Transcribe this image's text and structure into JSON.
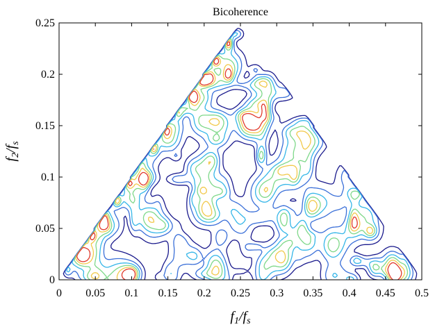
{
  "chart_data": {
    "type": "contour",
    "title": "Bicoherence",
    "xlabel": {
      "main": "f",
      "sub1": "1",
      "slash": "/",
      "main2": "f",
      "sub2": "s"
    },
    "ylabel": {
      "main": "f",
      "sub1": "2",
      "slash": "/",
      "main2": "f",
      "sub2": "s"
    },
    "xlim": [
      0,
      0.5
    ],
    "ylim": [
      0,
      0.25
    ],
    "xticks": [
      0,
      0.05,
      0.1,
      0.15,
      0.2,
      0.25,
      0.3,
      0.35,
      0.4,
      0.45,
      0.5
    ],
    "xtick_labels": [
      "0",
      "0.05",
      "0.1",
      "0.15",
      "0.2",
      "0.25",
      "0.3",
      "0.35",
      "0.4",
      "0.45",
      "0.5"
    ],
    "yticks": [
      0,
      0.05,
      0.1,
      0.15,
      0.2,
      0.25
    ],
    "ytick_labels": [
      "0",
      "0.05",
      "0.1",
      "0.15",
      "0.2",
      "0.25"
    ],
    "domain": "principal triangle with vertices (0,0), (0.25,0.25), (0.5,0)",
    "contour_levels": [
      {
        "level": 1,
        "color": "#1a1a8c"
      },
      {
        "level": 2,
        "color": "#3a6fd8"
      },
      {
        "level": 3,
        "color": "#35b6e8"
      },
      {
        "level": 4,
        "color": "#7fd88a"
      },
      {
        "level": 5,
        "color": "#f2c94c"
      },
      {
        "level": 6,
        "color": "#e0392b"
      }
    ],
    "peaks": [
      {
        "x": 0.08,
        "y": 0.0,
        "level": 6
      },
      {
        "x": 0.055,
        "y": 0.06,
        "level": 5
      },
      {
        "x": 0.32,
        "y": 0.105,
        "level": 5
      },
      {
        "x": 0.42,
        "y": 0.06,
        "level": 5
      },
      {
        "x": 0.15,
        "y": 0.14,
        "level": 4
      },
      {
        "x": 0.19,
        "y": 0.18,
        "level": 4
      },
      {
        "x": 0.27,
        "y": 0.155,
        "level": 4
      },
      {
        "x": 0.22,
        "y": 0.145,
        "level": 4
      },
      {
        "x": 0.36,
        "y": 0.075,
        "level": 4
      },
      {
        "x": 0.1,
        "y": 0.095,
        "level": 3
      },
      {
        "x": 0.13,
        "y": 0.055,
        "level": 4
      },
      {
        "x": 0.2,
        "y": 0.07,
        "level": 4
      },
      {
        "x": 0.25,
        "y": 0.055,
        "level": 3
      },
      {
        "x": 0.3,
        "y": 0.02,
        "level": 4
      },
      {
        "x": 0.38,
        "y": 0.035,
        "level": 4
      },
      {
        "x": 0.24,
        "y": 0.21,
        "level": 3
      },
      {
        "x": 0.17,
        "y": 0.025,
        "level": 3
      },
      {
        "x": 0.34,
        "y": 0.14,
        "level": 3
      },
      {
        "x": 0.46,
        "y": 0.015,
        "level": 3
      },
      {
        "x": 0.28,
        "y": 0.085,
        "level": 4
      },
      {
        "x": 0.12,
        "y": 0.12,
        "level": 3
      },
      {
        "x": 0.03,
        "y": 0.03,
        "level": 5
      },
      {
        "x": 0.2,
        "y": 0.11,
        "level": 3
      },
      {
        "x": 0.4,
        "y": 0.1,
        "level": 3
      }
    ]
  }
}
